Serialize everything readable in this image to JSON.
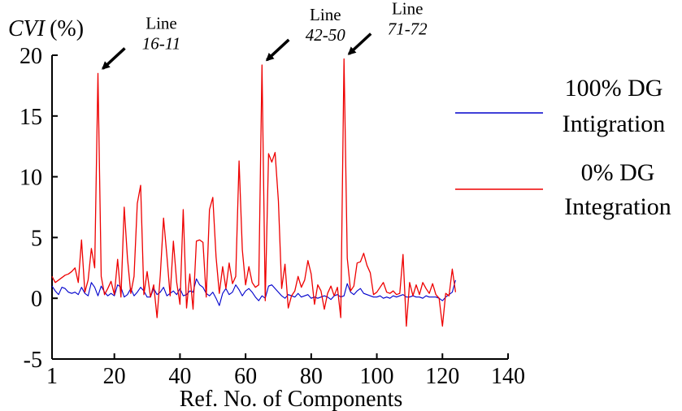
{
  "chart_data": {
    "type": "line",
    "ylabel_italic": "CVI",
    "ylabel_unit": "(%)",
    "xlabel": "Ref. No. of Components",
    "xlim": [
      1,
      140
    ],
    "ylim": [
      -5,
      20
    ],
    "xticks": [
      1,
      20,
      40,
      60,
      80,
      100,
      120,
      140
    ],
    "yticks": [
      -5,
      0,
      5,
      10,
      15,
      20
    ],
    "legend_position": "right",
    "series": [
      {
        "name_lines": [
          "100% DG",
          "Intigration"
        ],
        "color": "#0000cc",
        "x": [
          1,
          2,
          3,
          4,
          5,
          6,
          7,
          8,
          9,
          10,
          11,
          12,
          13,
          14,
          15,
          16,
          17,
          18,
          19,
          20,
          21,
          22,
          23,
          24,
          25,
          26,
          27,
          28,
          29,
          30,
          31,
          32,
          33,
          34,
          35,
          36,
          37,
          38,
          39,
          40,
          41,
          42,
          43,
          44,
          45,
          46,
          47,
          48,
          49,
          50,
          51,
          52,
          53,
          54,
          55,
          56,
          57,
          58,
          59,
          60,
          61,
          62,
          63,
          64,
          65,
          66,
          67,
          68,
          69,
          70,
          71,
          72,
          73,
          74,
          75,
          76,
          77,
          78,
          79,
          80,
          81,
          82,
          83,
          84,
          85,
          86,
          87,
          88,
          89,
          90,
          91,
          92,
          93,
          94,
          95,
          96,
          97,
          98,
          99,
          100,
          101,
          102,
          103,
          104,
          105,
          106,
          107,
          108,
          109,
          110,
          111,
          112,
          113,
          114,
          115,
          116,
          117,
          118,
          119,
          120,
          121,
          122,
          123,
          124
        ],
        "values": [
          1.0,
          0.6,
          0.3,
          0.9,
          0.8,
          0.5,
          0.4,
          0.5,
          0.3,
          0.9,
          0.4,
          0.2,
          1.3,
          0.9,
          0.2,
          1.0,
          0.5,
          0.2,
          0.4,
          0.2,
          1.1,
          0.9,
          0.1,
          0.3,
          0.8,
          0.2,
          0.5,
          0.9,
          0.6,
          0.1,
          0.1,
          0.8,
          0.3,
          0.5,
          0.9,
          0.2,
          0.4,
          0.6,
          0.3,
          0.8,
          0.2,
          0.3,
          0.6,
          0.5,
          1.6,
          1.1,
          0.9,
          0.4,
          0.2,
          0.5,
          0.0,
          -0.6,
          0.4,
          0.8,
          0.3,
          0.5,
          1.1,
          0.7,
          0.2,
          0.6,
          0.8,
          0.5,
          0.1,
          -0.2,
          0.2,
          0.0,
          1.0,
          1.1,
          0.8,
          0.5,
          0.2,
          0.0,
          0.3,
          0.2,
          0.1,
          0.4,
          0.1,
          0.2,
          0.3,
          0.0,
          0.1,
          0.0,
          0.1,
          0.2,
          0.1,
          -0.1,
          0.2,
          0.3,
          0.1,
          0.2,
          1.2,
          0.5,
          0.3,
          0.6,
          0.8,
          0.4,
          0.3,
          0.2,
          0.1,
          0.1,
          0.2,
          0.0,
          0.1,
          0.0,
          0.2,
          0.1,
          0.2,
          0.3,
          0.1,
          0.1,
          0.2,
          0.1,
          0.1,
          0.0,
          0.2,
          0.1,
          0.1,
          0.1,
          0.0,
          -0.2,
          0.1,
          0.3,
          0.5,
          1.5
        ]
      },
      {
        "name_lines": [
          "0% DG",
          "Integration"
        ],
        "color": "#ee0000",
        "x": [
          1,
          2,
          3,
          4,
          5,
          6,
          7,
          8,
          9,
          10,
          11,
          12,
          13,
          14,
          15,
          16,
          17,
          18,
          19,
          20,
          21,
          22,
          23,
          24,
          25,
          26,
          27,
          28,
          29,
          30,
          31,
          32,
          33,
          34,
          35,
          36,
          37,
          38,
          39,
          40,
          41,
          42,
          43,
          44,
          45,
          46,
          47,
          48,
          49,
          50,
          51,
          52,
          53,
          54,
          55,
          56,
          57,
          58,
          59,
          60,
          61,
          62,
          63,
          64,
          65,
          66,
          67,
          68,
          69,
          70,
          71,
          72,
          73,
          74,
          75,
          76,
          77,
          78,
          79,
          80,
          81,
          82,
          83,
          84,
          85,
          86,
          87,
          88,
          89,
          90,
          91,
          92,
          93,
          94,
          95,
          96,
          97,
          98,
          99,
          100,
          101,
          102,
          103,
          104,
          105,
          106,
          107,
          108,
          109,
          110,
          111,
          112,
          113,
          114,
          115,
          116,
          117,
          118,
          119,
          120,
          121,
          122,
          123,
          124
        ],
        "values": [
          1.8,
          1.3,
          1.5,
          1.7,
          1.9,
          2.0,
          2.2,
          2.5,
          1.3,
          4.8,
          0.5,
          1.5,
          4.1,
          2.5,
          18.5,
          1.8,
          0.3,
          0.8,
          1.4,
          0.3,
          3.2,
          0.1,
          7.5,
          3.3,
          0.4,
          1.8,
          7.8,
          9.3,
          0.3,
          2.2,
          0.1,
          1.1,
          -1.6,
          1.9,
          6.6,
          3.5,
          0.2,
          4.7,
          1.3,
          -0.5,
          7.3,
          -0.8,
          2.0,
          -0.9,
          4.7,
          4.8,
          4.6,
          0.1,
          7.3,
          8.3,
          3.4,
          0.4,
          2.6,
          0.8,
          2.9,
          1.2,
          1.8,
          11.3,
          4.0,
          1.1,
          2.6,
          1.3,
          0.9,
          1.1,
          19.2,
          -0.2,
          11.9,
          11.2,
          12.0,
          8.0,
          0.8,
          2.8,
          -0.8,
          0.2,
          0.6,
          1.8,
          0.9,
          1.5,
          3.1,
          2.0,
          -0.5,
          1.1,
          0.6,
          -0.9,
          0.4,
          1.0,
          0.2,
          0.9,
          -1.6,
          19.7,
          3.3,
          0.6,
          1.0,
          2.9,
          3.0,
          3.7,
          2.7,
          2.1,
          0.3,
          0.5,
          0.9,
          1.3,
          0.5,
          0.4,
          0.6,
          0.3,
          0.4,
          3.6,
          -2.3,
          1.3,
          0.2,
          1.1,
          0.3,
          1.3,
          0.8,
          0.4,
          1.2,
          0.3,
          0.0,
          -2.3,
          0.4,
          0.2,
          2.4,
          0.5
        ]
      }
    ],
    "annotations": [
      {
        "line1": "Line",
        "line2": "16-11",
        "x": 15,
        "y": 18.5
      },
      {
        "line1": "Line",
        "line2": "42-50",
        "x": 65,
        "y": 19.2
      },
      {
        "line1": "Line",
        "line2": "71-72",
        "x": 90,
        "y": 19.7
      }
    ]
  }
}
